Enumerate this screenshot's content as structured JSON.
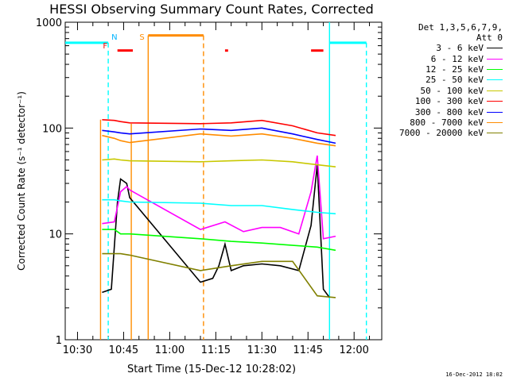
{
  "chart_data": {
    "type": "line",
    "title": "HESSI Observing Summary Count Rates, Corrected",
    "xlabel": "Start Time (15-Dec-12 10:28:02)",
    "ylabel": "Corrected Count Rate (s⁻¹ detector⁻¹)",
    "yscale": "log",
    "ylim": [
      1,
      1000
    ],
    "xlim": [
      "10:26",
      "12:09"
    ],
    "x_ticks": [
      "10:30",
      "10:45",
      "11:00",
      "11:15",
      "11:30",
      "11:45",
      "12:00"
    ],
    "y_ticks": [
      "1",
      "10",
      "100",
      "1000"
    ],
    "grid": false,
    "legend_position": "right",
    "legend_header": [
      "Det 1,3,5,6,7,9,",
      "Att 0"
    ],
    "series": [
      {
        "name": "3 - 6 keV",
        "color": "#000000",
        "points": [
          [
            "10:38",
            2.8
          ],
          [
            "10:41",
            3.0
          ],
          [
            "10:43",
            20
          ],
          [
            "10:44",
            33
          ],
          [
            "10:46",
            30
          ],
          [
            "10:47",
            22
          ],
          [
            "11:10",
            3.5
          ],
          [
            "11:14",
            3.8
          ],
          [
            "11:16",
            5
          ],
          [
            "11:18",
            8
          ],
          [
            "11:20",
            4.5
          ],
          [
            "11:24",
            5
          ],
          [
            "11:30",
            5.2
          ],
          [
            "11:36",
            5.0
          ],
          [
            "11:42",
            4.5
          ],
          [
            "11:46",
            12
          ],
          [
            "11:48",
            45
          ],
          [
            "11:50",
            3
          ],
          [
            "11:52",
            2.5
          ]
        ]
      },
      {
        "name": "6 - 12 keV",
        "color": "#ff00ff",
        "points": [
          [
            "10:38",
            12.5
          ],
          [
            "10:42",
            13
          ],
          [
            "10:44",
            25
          ],
          [
            "10:46",
            28
          ],
          [
            "10:47",
            26
          ],
          [
            "11:10",
            11
          ],
          [
            "11:18",
            13
          ],
          [
            "11:24",
            10.5
          ],
          [
            "11:30",
            11.5
          ],
          [
            "11:36",
            11.5
          ],
          [
            "11:42",
            10
          ],
          [
            "11:46",
            25
          ],
          [
            "11:48",
            55
          ],
          [
            "11:50",
            9
          ],
          [
            "11:54",
            9.5
          ]
        ]
      },
      {
        "name": "12 - 25 keV",
        "color": "#00ff00",
        "points": [
          [
            "10:38",
            11
          ],
          [
            "10:42",
            11
          ],
          [
            "10:44",
            10
          ],
          [
            "10:47",
            10
          ],
          [
            "11:10",
            9
          ],
          [
            "11:20",
            8.5
          ],
          [
            "11:30",
            8.2
          ],
          [
            "11:40",
            7.8
          ],
          [
            "11:48",
            7.5
          ],
          [
            "11:54",
            7
          ]
        ]
      },
      {
        "name": "25 - 50 keV",
        "color": "#00ffff",
        "points": [
          [
            "10:38",
            21
          ],
          [
            "10:42",
            21
          ],
          [
            "10:44",
            20.5
          ],
          [
            "10:47",
            20
          ],
          [
            "11:10",
            19.5
          ],
          [
            "11:20",
            18.5
          ],
          [
            "11:30",
            18.5
          ],
          [
            "11:40",
            17
          ],
          [
            "11:48",
            16
          ],
          [
            "11:54",
            15.5
          ]
        ]
      },
      {
        "name": "50 - 100 keV",
        "color": "#c8c800",
        "points": [
          [
            "10:38",
            50
          ],
          [
            "10:42",
            51
          ],
          [
            "10:44",
            50
          ],
          [
            "10:47",
            49
          ],
          [
            "11:10",
            48
          ],
          [
            "11:20",
            49
          ],
          [
            "11:30",
            50
          ],
          [
            "11:40",
            48
          ],
          [
            "11:48",
            45
          ],
          [
            "11:54",
            43
          ]
        ]
      },
      {
        "name": "100 - 300 keV",
        "color": "#ff0000",
        "points": [
          [
            "10:38",
            120
          ],
          [
            "10:42",
            118
          ],
          [
            "10:44",
            115
          ],
          [
            "10:47",
            112
          ],
          [
            "11:10",
            110
          ],
          [
            "11:20",
            112
          ],
          [
            "11:30",
            118
          ],
          [
            "11:40",
            105
          ],
          [
            "11:48",
            90
          ],
          [
            "11:54",
            85
          ]
        ]
      },
      {
        "name": "300 - 800 keV",
        "color": "#0000ff",
        "points": [
          [
            "10:38",
            95
          ],
          [
            "10:42",
            92
          ],
          [
            "10:44",
            90
          ],
          [
            "10:47",
            88
          ],
          [
            "11:10",
            98
          ],
          [
            "11:20",
            95
          ],
          [
            "11:30",
            100
          ],
          [
            "11:40",
            88
          ],
          [
            "11:48",
            78
          ],
          [
            "11:54",
            72
          ]
        ]
      },
      {
        "name": "800 - 7000 keV",
        "color": "#ff8c00",
        "points": [
          [
            "10:38",
            85
          ],
          [
            "10:42",
            80
          ],
          [
            "10:44",
            76
          ],
          [
            "10:47",
            73
          ],
          [
            "11:10",
            88
          ],
          [
            "11:20",
            84
          ],
          [
            "11:30",
            88
          ],
          [
            "11:40",
            80
          ],
          [
            "11:48",
            72
          ],
          [
            "11:54",
            68
          ]
        ]
      },
      {
        "name": "7000 - 20000 keV",
        "color": "#808000",
        "points": [
          [
            "10:38",
            6.5
          ],
          [
            "10:42",
            6.5
          ],
          [
            "10:44",
            6.5
          ],
          [
            "10:47",
            6.3
          ],
          [
            "11:10",
            4.5
          ],
          [
            "11:20",
            5
          ],
          [
            "11:30",
            5.5
          ],
          [
            "11:40",
            5.5
          ],
          [
            "11:48",
            2.6
          ],
          [
            "11:54",
            2.5
          ]
        ]
      }
    ],
    "annotations": [
      {
        "label": "F",
        "time": "10:39",
        "color": "#ff0000"
      },
      {
        "label": "N",
        "time": "10:42",
        "color": "#00b4ff"
      },
      {
        "label": "S",
        "time": "10:51",
        "color": "#ff8c00"
      }
    ],
    "flag_bars": [
      {
        "color": "#00ffff",
        "start": "10:26",
        "end": "10:40",
        "level": 640
      },
      {
        "color": "#00ffff",
        "start": "11:52",
        "end": "12:04",
        "level": 640
      },
      {
        "color": "#ff8c00",
        "start": "10:53",
        "end": "11:11",
        "level": 750
      },
      {
        "color": "#ff0000",
        "start": "10:43",
        "end": "10:48",
        "level": 540
      },
      {
        "color": "#ff0000",
        "start": "11:18",
        "end": "11:19",
        "level": 540
      },
      {
        "color": "#ff0000",
        "start": "11:46",
        "end": "11:50",
        "level": 540
      }
    ],
    "vertical_lines": [
      {
        "time": "10:37.5",
        "style": "solid",
        "color": "#ff8c00",
        "from": 1,
        "to": 120
      },
      {
        "time": "10:47.5",
        "style": "solid",
        "color": "#ff8c00",
        "from": 1,
        "to": 110
      },
      {
        "time": "10:53",
        "style": "solid",
        "color": "#ff8c00",
        "from": 1,
        "to": 750
      },
      {
        "time": "11:11",
        "style": "dashed",
        "color": "#ff8c00",
        "from": 1,
        "to": 750
      },
      {
        "time": "10:40",
        "style": "dashed",
        "color": "#00ffff",
        "from": 1,
        "to": 640
      },
      {
        "time": "11:52",
        "style": "solid",
        "color": "#00ffff",
        "from": 1,
        "to": 1000
      },
      {
        "time": "12:04",
        "style": "dashed",
        "color": "#00ffff",
        "from": 1,
        "to": 640
      }
    ]
  },
  "legend": {
    "header_line1": "Det 1,3,5,6,7,9,",
    "header_line2": "Att 0"
  },
  "footer_stamp": "16-Dec-2012 18:02"
}
